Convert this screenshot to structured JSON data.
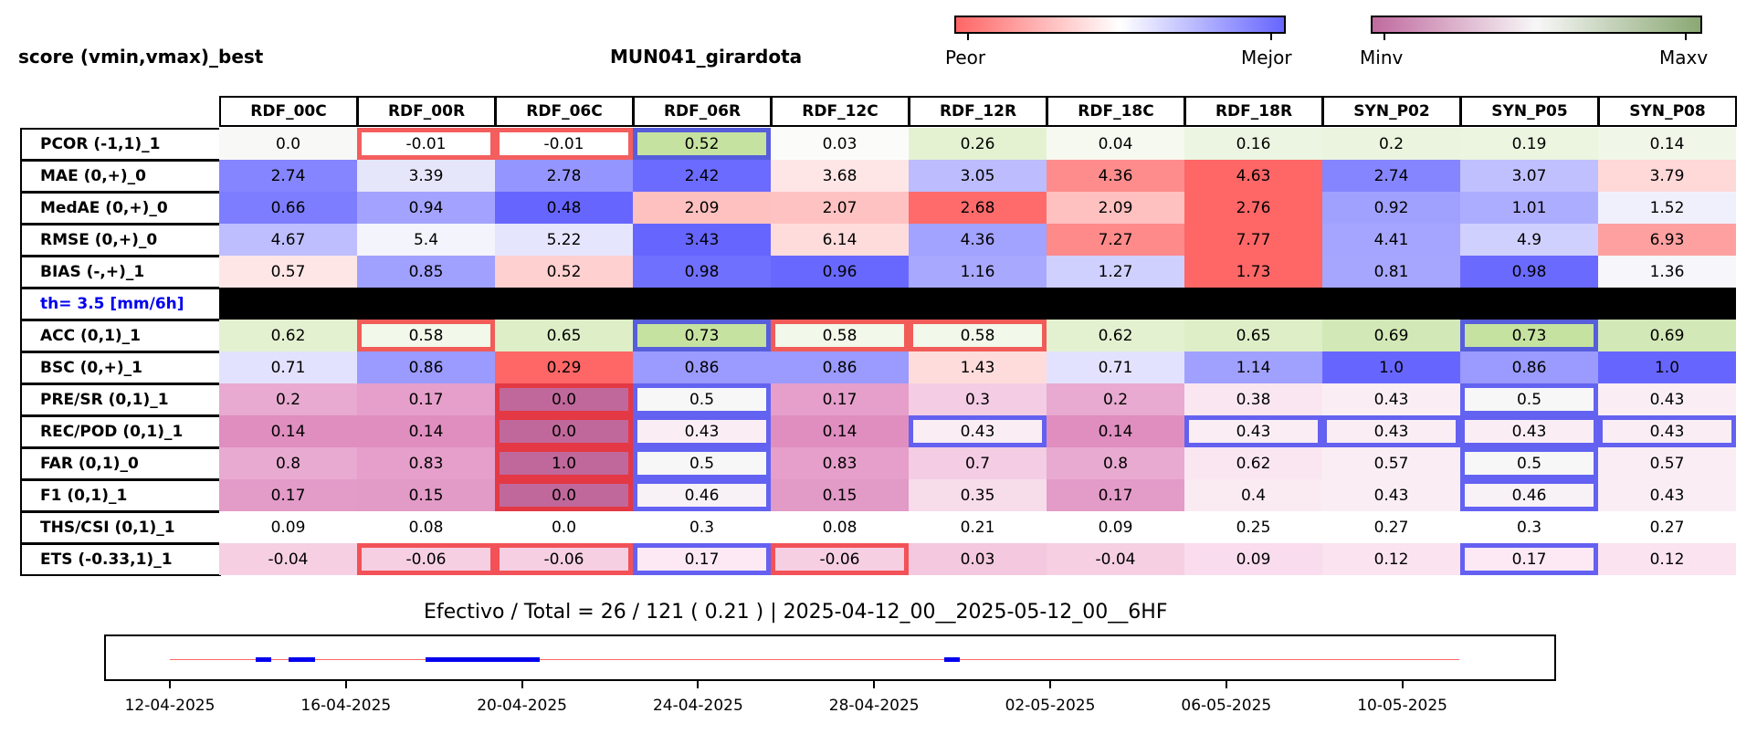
{
  "header": {
    "left_title": "score (vmin,vmax)_best",
    "center_title": "MUN041_girardota"
  },
  "colorbar1": {
    "low_label": "Peor",
    "high_label": "Mejor",
    "low_color": "#ff6666",
    "mid_color": "#ffffff",
    "high_color": "#6666ff"
  },
  "colorbar2": {
    "low_label": "Minv",
    "high_label": "Maxv",
    "low_color": "#c06a9f",
    "mid_color": "#f7f7f7",
    "high_color": "#8aa873"
  },
  "chart_data": {
    "type": "heatmap",
    "columns": [
      "RDF_00C",
      "RDF_00R",
      "RDF_06C",
      "RDF_06R",
      "RDF_12C",
      "RDF_12R",
      "RDF_18C",
      "RDF_18R",
      "SYN_P02",
      "SYN_P05",
      "SYN_P08"
    ],
    "rows": [
      {
        "label": "PCOR (-1,1)_1",
        "values": [
          "0.0",
          "-0.01",
          "-0.01",
          "0.52",
          "0.03",
          "0.26",
          "0.04",
          "0.16",
          "0.2",
          "0.19",
          "0.14"
        ],
        "colors": [
          "#f8f8f6",
          "#ffffff",
          "#ffffff",
          "#c6e2a0",
          "#fbfcf9",
          "#e4f2d2",
          "#f6f9f0",
          "#ecf5e1",
          "#eaf4de",
          "#ebf5e0",
          "#f0f7e8"
        ],
        "red": [
          1,
          2
        ],
        "blue": [
          3
        ]
      },
      {
        "label": "MAE (0,+)_0",
        "values": [
          "2.74",
          "3.39",
          "2.78",
          "2.42",
          "3.68",
          "3.05",
          "4.36",
          "4.63",
          "2.74",
          "3.07",
          "3.79"
        ],
        "colors": [
          "#8585ff",
          "#e6e6fb",
          "#9595ff",
          "#6b6bff",
          "#ffe6e6",
          "#bcbcff",
          "#ff8c8c",
          "#ff6666",
          "#8585ff",
          "#c0c0ff",
          "#ffd8d8"
        ],
        "red": [],
        "blue": []
      },
      {
        "label": "MedAE (0,+)_0",
        "values": [
          "0.66",
          "0.94",
          "0.48",
          "2.09",
          "2.07",
          "2.68",
          "2.09",
          "2.76",
          "0.92",
          "1.01",
          "1.52"
        ],
        "colors": [
          "#7d7dff",
          "#a3a3ff",
          "#6666ff",
          "#ffc0c0",
          "#ffc2c2",
          "#ff6a6a",
          "#ffc0c0",
          "#ff6666",
          "#a0a0ff",
          "#adadff",
          "#f0f0fd"
        ],
        "red": [],
        "blue": []
      },
      {
        "label": "RMSE (0,+)_0",
        "values": [
          "4.67",
          "5.4",
          "5.22",
          "3.43",
          "6.14",
          "4.36",
          "7.27",
          "7.77",
          "4.41",
          "4.9",
          "6.93"
        ],
        "colors": [
          "#bebeff",
          "#f4f4fc",
          "#e5e5fd",
          "#6666ff",
          "#ffdcdc",
          "#a2a2ff",
          "#ff8a8a",
          "#ff6666",
          "#a5a5ff",
          "#d0d0ff",
          "#ffa0a0"
        ],
        "red": [],
        "blue": []
      },
      {
        "label": "BIAS (-,+)_1",
        "values": [
          "0.57",
          "0.85",
          "0.52",
          "0.98",
          "0.96",
          "1.16",
          "1.27",
          "1.73",
          "0.81",
          "0.98",
          "1.36"
        ],
        "colors": [
          "#ffe6e6",
          "#a0a0ff",
          "#ffd0d0",
          "#7070ff",
          "#6868ff",
          "#a8a8ff",
          "#d0d0ff",
          "#ff6666",
          "#a6a6ff",
          "#6a6aff",
          "#f6f6fb"
        ],
        "red": [],
        "blue": []
      },
      {
        "label": "th= 3.5 [mm/6h]",
        "values": [
          "",
          "",
          "",
          "",
          "",
          "",
          "",
          "",
          "",
          "",
          ""
        ],
        "colors": [
          "#000000",
          "#000000",
          "#000000",
          "#000000",
          "#000000",
          "#000000",
          "#000000",
          "#000000",
          "#000000",
          "#000000",
          "#000000"
        ],
        "red": [],
        "blue": [],
        "separator": true
      },
      {
        "label": "ACC (0,1)_1",
        "values": [
          "0.62",
          "0.58",
          "0.65",
          "0.73",
          "0.58",
          "0.58",
          "0.62",
          "0.65",
          "0.69",
          "0.73",
          "0.69"
        ],
        "colors": [
          "#e4f1d0",
          "#f2f8ea",
          "#deefc8",
          "#c6e2a0",
          "#f2f8ea",
          "#f2f8ea",
          "#e4f1d0",
          "#deefc8",
          "#d2e8b6",
          "#c6e2a0",
          "#d2e8b6"
        ],
        "red": [
          1,
          4,
          5
        ],
        "blue": [
          3,
          9
        ]
      },
      {
        "label": "BSC (0,+)_1",
        "values": [
          "0.71",
          "0.86",
          "0.29",
          "0.86",
          "0.86",
          "1.43",
          "0.71",
          "1.14",
          "1.0",
          "0.86",
          "1.0"
        ],
        "colors": [
          "#e2e2ff",
          "#9a9aff",
          "#ff6666",
          "#9a9aff",
          "#9a9aff",
          "#ffdcdc",
          "#e2e2ff",
          "#a0a0ff",
          "#6666ff",
          "#9a9aff",
          "#6666ff"
        ],
        "red": [],
        "blue": []
      },
      {
        "label": "PRE/SR (0,1)_1",
        "values": [
          "0.2",
          "0.17",
          "0.0",
          "0.5",
          "0.17",
          "0.3",
          "0.2",
          "0.38",
          "0.43",
          "0.5",
          "0.43"
        ],
        "colors": [
          "#e8aad0",
          "#e59fca",
          "#c0689b",
          "#f7f7f7",
          "#e59fca",
          "#f4cce4",
          "#e8aad0",
          "#fae6f1",
          "#faeef4",
          "#f7f7f7",
          "#faeef4"
        ],
        "red": [
          2
        ],
        "blue": [
          3,
          9
        ]
      },
      {
        "label": "REC/POD (0,1)_1",
        "values": [
          "0.14",
          "0.14",
          "0.0",
          "0.43",
          "0.14",
          "0.43",
          "0.14",
          "0.43",
          "0.43",
          "0.43",
          "0.43"
        ],
        "colors": [
          "#df8ebf",
          "#df8ebf",
          "#c0689b",
          "#faeef4",
          "#df8ebf",
          "#faeef4",
          "#df8ebf",
          "#faeef4",
          "#faeef4",
          "#faeef4",
          "#faeef4"
        ],
        "red": [
          2
        ],
        "blue": [
          3,
          5,
          7,
          8,
          9,
          10
        ]
      },
      {
        "label": "FAR (0,1)_0",
        "values": [
          "0.8",
          "0.83",
          "1.0",
          "0.5",
          "0.83",
          "0.7",
          "0.8",
          "0.62",
          "0.57",
          "0.5",
          "0.57"
        ],
        "colors": [
          "#e8aad0",
          "#e59fca",
          "#c0689b",
          "#f7f7f7",
          "#e59fca",
          "#f4cce4",
          "#e8aad0",
          "#fae6f1",
          "#faeef4",
          "#f7f7f7",
          "#faeef4"
        ],
        "red": [
          2
        ],
        "blue": [
          3,
          9
        ]
      },
      {
        "label": "F1 (0,1)_1",
        "values": [
          "0.17",
          "0.15",
          "0.0",
          "0.46",
          "0.15",
          "0.35",
          "0.17",
          "0.4",
          "0.43",
          "0.46",
          "0.43"
        ],
        "colors": [
          "#e39bc8",
          "#e29ac7",
          "#c0689b",
          "#f8f2f6",
          "#e29ac7",
          "#f7dcea",
          "#e39bc8",
          "#faeaf2",
          "#faeef4",
          "#f8f2f6",
          "#faeef4"
        ],
        "red": [
          2
        ],
        "blue": [
          3,
          9
        ]
      },
      {
        "label": "THS/CSI (0,1)_1",
        "values": [
          "0.09",
          "0.08",
          "0.0",
          "0.3",
          "0.08",
          "0.21",
          "0.09",
          "0.25",
          "0.27",
          "0.3",
          "0.27"
        ],
        "colors": [
          "#ffffff",
          "#ffffff",
          "#ffffff",
          "#ffffff",
          "#ffffff",
          "#ffffff",
          "#ffffff",
          "#ffffff",
          "#ffffff",
          "#ffffff",
          "#ffffff"
        ],
        "red": [],
        "blue": []
      },
      {
        "label": "ETS (-0.33,1)_1",
        "values": [
          "-0.04",
          "-0.06",
          "-0.06",
          "0.17",
          "-0.06",
          "0.03",
          "-0.04",
          "0.09",
          "0.12",
          "0.17",
          "0.12"
        ],
        "colors": [
          "#f6cfe3",
          "#f6cfe3",
          "#f6cfe3",
          "#fde9f3",
          "#f6cfe3",
          "#f4c8de",
          "#f6cfe3",
          "#f9dced",
          "#fbe3ef",
          "#fde9f3",
          "#fbe3ef"
        ],
        "red": [
          1,
          2,
          4
        ],
        "blue": [
          3,
          9
        ]
      }
    ]
  },
  "summary": {
    "text": "Efectivo / Total  =  26 / 121 ( 0.21 ) | 2025-04-12_00__2025-05-12_00__6HF"
  },
  "timeline": {
    "ticks": [
      "12-04-2025",
      "16-04-2025",
      "20-04-2025",
      "24-04-2025",
      "28-04-2025",
      "02-05-2025",
      "06-05-2025",
      "10-05-2025"
    ],
    "tick_days": [
      0,
      4,
      8,
      12,
      16,
      20,
      24,
      28
    ],
    "range_days": [
      0,
      30
    ],
    "segments_days": [
      [
        1.95,
        2.3
      ],
      [
        2.7,
        3.3
      ],
      [
        5.8,
        8.4
      ],
      [
        17.6,
        17.95
      ]
    ],
    "line_color": "#ff6666",
    "segment_color": "#0000ee"
  }
}
